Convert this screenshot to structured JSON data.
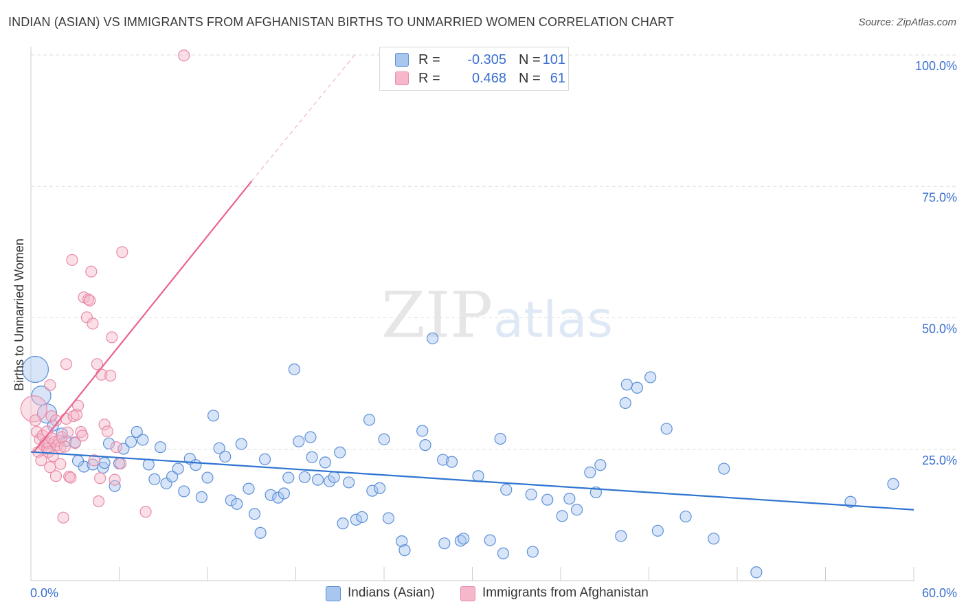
{
  "header": {
    "title": "INDIAN (ASIAN) VS IMMIGRANTS FROM AFGHANISTAN BIRTHS TO UNMARRIED WOMEN CORRELATION CHART",
    "source": "Source: ZipAtlas.com"
  },
  "legend": {
    "rows": [
      {
        "r_label": "R =",
        "r_value": "-0.305",
        "n_label": "N =",
        "n_value": "101"
      },
      {
        "r_label": "R =",
        "r_value": "0.468",
        "n_label": "N =",
        "n_value": "61"
      }
    ]
  },
  "watermark": {
    "zip": "ZIP",
    "atlas": "atlas"
  },
  "colors": {
    "blue_fill": "#a9c6ef",
    "blue_stroke": "#5a8fd8",
    "blue_line": "#2f74d0",
    "pink_fill": "#f5b7c9",
    "pink_stroke": "#e98aa8",
    "pink_line": "#e8638f",
    "axis_label": "#3a6fd0",
    "grid": "#dddddd"
  },
  "chart_data": {
    "type": "scatter",
    "title": "INDIAN (ASIAN) VS IMMIGRANTS FROM AFGHANISTAN BIRTHS TO UNMARRIED WOMEN CORRELATION CHART",
    "xlabel": "",
    "ylabel": "Births to Unmarried Women",
    "xlim": [
      0,
      60
    ],
    "ylim": [
      0,
      100
    ],
    "x_tick_labels": [
      "0.0%",
      "60.0%"
    ],
    "y_tick_labels": [
      {
        "value": 25,
        "label": "25.0%"
      },
      {
        "value": 50,
        "label": "50.0%"
      },
      {
        "value": 75,
        "label": "75.0%"
      },
      {
        "value": 100,
        "label": "100.0%"
      }
    ],
    "grid": true,
    "legend_position": "bottom-center",
    "series": [
      {
        "name": "Indians (Asian)",
        "color": "blue",
        "r": -0.305,
        "n": 101,
        "trend": {
          "x": [
            0,
            60
          ],
          "y": [
            24.5,
            13.5
          ]
        },
        "points": [
          [
            0.3,
            40.2,
            "L"
          ],
          [
            0.7,
            35.2,
            "M"
          ],
          [
            1.1,
            31.8,
            "M"
          ],
          [
            1.5,
            29.5,
            "S"
          ],
          [
            2.1,
            28,
            "S"
          ],
          [
            2.4,
            26.6,
            "S"
          ],
          [
            3,
            26.3,
            "S"
          ],
          [
            3.6,
            21.7,
            "S"
          ],
          [
            3.2,
            22.8,
            "S"
          ],
          [
            4.2,
            22.1,
            "S"
          ],
          [
            4.9,
            21.5,
            "S"
          ],
          [
            5,
            22.4,
            "S"
          ],
          [
            5.3,
            26.1,
            "S"
          ],
          [
            5.7,
            18,
            "S"
          ],
          [
            6,
            22.3,
            "S"
          ],
          [
            6.3,
            25.1,
            "S"
          ],
          [
            6.8,
            26.4,
            "S"
          ],
          [
            7.2,
            28.3,
            "S"
          ],
          [
            7.6,
            26.8,
            "S"
          ],
          [
            8,
            22.1,
            "S"
          ],
          [
            8.4,
            19.3,
            "S"
          ],
          [
            8.8,
            25.4,
            "S"
          ],
          [
            9.2,
            18.5,
            "S"
          ],
          [
            9.6,
            19.8,
            "S"
          ],
          [
            10,
            21.3,
            "S"
          ],
          [
            10.4,
            17,
            "S"
          ],
          [
            10.8,
            23.2,
            "S"
          ],
          [
            11.2,
            22,
            "S"
          ],
          [
            11.6,
            15.9,
            "S"
          ],
          [
            12,
            19.6,
            "S"
          ],
          [
            12.4,
            31.4,
            "S"
          ],
          [
            12.8,
            25.2,
            "S"
          ],
          [
            13.2,
            23.6,
            "S"
          ],
          [
            13.6,
            15.3,
            "S"
          ],
          [
            14,
            14.6,
            "S"
          ],
          [
            14.3,
            26,
            "S"
          ],
          [
            14.8,
            17.5,
            "S"
          ],
          [
            15.2,
            12.7,
            "S"
          ],
          [
            15.6,
            9.1,
            "S"
          ],
          [
            15.9,
            23.1,
            "S"
          ],
          [
            16.3,
            16.3,
            "S"
          ],
          [
            16.8,
            15.8,
            "S"
          ],
          [
            17.2,
            16.6,
            "S"
          ],
          [
            17.5,
            19.6,
            "S"
          ],
          [
            17.9,
            40.2,
            "S"
          ],
          [
            18.2,
            26.5,
            "S"
          ],
          [
            18.6,
            19.7,
            "S"
          ],
          [
            19,
            27.3,
            "S"
          ],
          [
            19.1,
            23.5,
            "S"
          ],
          [
            19.5,
            19.2,
            "S"
          ],
          [
            20,
            22.5,
            "S"
          ],
          [
            20.3,
            18.9,
            "S"
          ],
          [
            20.6,
            19.7,
            "S"
          ],
          [
            21,
            24.4,
            "S"
          ],
          [
            21.2,
            10.9,
            "S"
          ],
          [
            21.6,
            18.7,
            "S"
          ],
          [
            22.1,
            11.6,
            "S"
          ],
          [
            22.5,
            12.1,
            "S"
          ],
          [
            23,
            30.6,
            "S"
          ],
          [
            23.2,
            17.1,
            "S"
          ],
          [
            23.7,
            17.6,
            "S"
          ],
          [
            24,
            26.9,
            "S"
          ],
          [
            24.3,
            11.9,
            "S"
          ],
          [
            25.2,
            7.5,
            "S"
          ],
          [
            25.4,
            5.8,
            "S"
          ],
          [
            26.6,
            28.5,
            "S"
          ],
          [
            26.8,
            25.8,
            "S"
          ],
          [
            27.3,
            46.1,
            "S"
          ],
          [
            28,
            23,
            "S"
          ],
          [
            28.1,
            7.1,
            "S"
          ],
          [
            28.6,
            22.6,
            "S"
          ],
          [
            29.2,
            7.6,
            "S"
          ],
          [
            29.4,
            8,
            "S"
          ],
          [
            30.4,
            19.9,
            "S"
          ],
          [
            31.2,
            7.7,
            "S"
          ],
          [
            31.9,
            27,
            "S"
          ],
          [
            32.1,
            5.2,
            "S"
          ],
          [
            32.3,
            17.3,
            "S"
          ],
          [
            34,
            16.4,
            "S"
          ],
          [
            34.1,
            5.5,
            "S"
          ],
          [
            35.1,
            15.4,
            "S"
          ],
          [
            36.1,
            12.3,
            "S"
          ],
          [
            36.6,
            15.6,
            "S"
          ],
          [
            37.1,
            13.5,
            "S"
          ],
          [
            38,
            20.6,
            "S"
          ],
          [
            38.4,
            16.8,
            "S"
          ],
          [
            38.7,
            22,
            "S"
          ],
          [
            40.1,
            8.5,
            "S"
          ],
          [
            40.4,
            33.8,
            "S"
          ],
          [
            40.5,
            37.3,
            "S"
          ],
          [
            41.2,
            36.7,
            "S"
          ],
          [
            42.1,
            38.7,
            "S"
          ],
          [
            42.6,
            9.5,
            "S"
          ],
          [
            43.2,
            28.9,
            "S"
          ],
          [
            44.5,
            12.2,
            "S"
          ],
          [
            46.4,
            8,
            "S"
          ],
          [
            47.1,
            21.3,
            "S"
          ],
          [
            49.3,
            1.6,
            "S"
          ],
          [
            55.7,
            15,
            "S"
          ],
          [
            58.6,
            18.4,
            "S"
          ]
        ]
      },
      {
        "name": "Immigrants from Afghanistan",
        "color": "pink",
        "r": 0.468,
        "n": 61,
        "trend": {
          "x": [
            0.2,
            15
          ],
          "y": [
            24.5,
            76
          ]
        },
        "trend_extension": {
          "x": [
            15,
            22
          ],
          "y": [
            76,
            100
          ]
        },
        "points": [
          [
            0.2,
            32.7,
            "L"
          ],
          [
            0.3,
            30.5,
            "S"
          ],
          [
            0.4,
            28.3,
            "S"
          ],
          [
            0.5,
            24.5,
            "S"
          ],
          [
            0.6,
            26.9,
            "S"
          ],
          [
            0.7,
            22.9,
            "S"
          ],
          [
            0.8,
            27.6,
            "S"
          ],
          [
            0.9,
            25.7,
            "S"
          ],
          [
            1,
            26.3,
            "S"
          ],
          [
            1.1,
            28.4,
            "S"
          ],
          [
            1.1,
            25.1,
            "S"
          ],
          [
            1.2,
            26.1,
            "S"
          ],
          [
            1.2,
            24.5,
            "S"
          ],
          [
            1.3,
            37.2,
            "S"
          ],
          [
            1.3,
            21.6,
            "S"
          ],
          [
            1.4,
            31.3,
            "S"
          ],
          [
            1.4,
            27.1,
            "S"
          ],
          [
            1.5,
            23.7,
            "S"
          ],
          [
            1.6,
            26.4,
            "S"
          ],
          [
            1.7,
            19.9,
            "S"
          ],
          [
            1.7,
            30.5,
            "S"
          ],
          [
            1.8,
            25.8,
            "S"
          ],
          [
            1.9,
            26.6,
            "S"
          ],
          [
            2,
            22.2,
            "S"
          ],
          [
            2,
            25.3,
            "S"
          ],
          [
            2.1,
            27.3,
            "S"
          ],
          [
            2.2,
            12,
            "S"
          ],
          [
            2.3,
            25.5,
            "S"
          ],
          [
            2.4,
            30.8,
            "S"
          ],
          [
            2.4,
            41.2,
            "S"
          ],
          [
            2.5,
            28.2,
            "S"
          ],
          [
            2.6,
            19.8,
            "S"
          ],
          [
            2.7,
            19.6,
            "S"
          ],
          [
            2.8,
            61,
            "S"
          ],
          [
            2.9,
            31.3,
            "S"
          ],
          [
            3,
            26.2,
            "S"
          ],
          [
            3.1,
            31.6,
            "S"
          ],
          [
            3.2,
            33.3,
            "S"
          ],
          [
            3.4,
            28.3,
            "S"
          ],
          [
            3.5,
            27.6,
            "S"
          ],
          [
            3.6,
            53.9,
            "S"
          ],
          [
            3.8,
            50.1,
            "S"
          ],
          [
            3.9,
            53.5,
            "S"
          ],
          [
            4,
            53.3,
            "S"
          ],
          [
            4.1,
            58.8,
            "S"
          ],
          [
            4.2,
            48.9,
            "S"
          ],
          [
            4.3,
            22.9,
            "S"
          ],
          [
            4.5,
            41.2,
            "S"
          ],
          [
            4.6,
            15.1,
            "S"
          ],
          [
            4.7,
            19.5,
            "S"
          ],
          [
            4.8,
            39.2,
            "S"
          ],
          [
            5,
            29.7,
            "S"
          ],
          [
            5.2,
            28.4,
            "S"
          ],
          [
            5.4,
            39,
            "S"
          ],
          [
            5.5,
            46.3,
            "S"
          ],
          [
            5.7,
            19.2,
            "S"
          ],
          [
            5.8,
            25.4,
            "S"
          ],
          [
            6.1,
            22.3,
            "S"
          ],
          [
            6.2,
            62.5,
            "S"
          ],
          [
            7.8,
            13.1,
            "S"
          ],
          [
            10.4,
            99.9,
            "S"
          ]
        ]
      }
    ]
  }
}
